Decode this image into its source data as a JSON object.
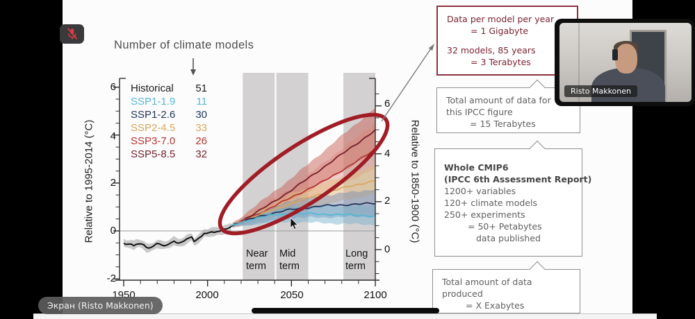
{
  "window": {
    "share_pill_label": "Экран (Risto Makkonen)",
    "webcam_participant_name": "Risto Makkonen"
  },
  "slide": {
    "title": "Number of climate models",
    "annotation_boxes": [
      {
        "style": "red",
        "lines": [
          "Data per model per year",
          "= 1 Gigabyte",
          "",
          "32 models, 85 years",
          "= 3 Terabytes"
        ]
      },
      {
        "style": "gray",
        "lines": [
          "Total amount of data for",
          "this IPCC figure",
          "= 15 Terabytes"
        ]
      },
      {
        "style": "gray",
        "lines": [
          "Whole CMIP6",
          "(IPCC 6th Assessment Report)",
          "1200+ variables",
          "120+ climate models",
          "250+ experiments",
          "= 50+ Petabytes",
          "data published"
        ]
      },
      {
        "style": "gray",
        "lines": [
          "Total amount of data",
          "produced",
          "= X Exabytes"
        ]
      }
    ]
  },
  "colors": {
    "ellipse_annotation": "#a01d26",
    "connector_arrow": "#7a7a7a",
    "title_arrow": "#555555",
    "term_band_fill": "#d3d1d1"
  },
  "chart_data": {
    "type": "line",
    "title": "Number of climate models",
    "y_left": {
      "label": "Relative to 1995-2014 (°C)",
      "ticks": [
        6,
        4,
        2,
        0,
        -2
      ],
      "range": [
        -2.1,
        6.6
      ]
    },
    "y_right": {
      "label": "Relative to 1850-1900 (°C)",
      "ticks": [
        6,
        4,
        2,
        0
      ],
      "baseline_offset": 0.78
    },
    "x_axis": {
      "ticks": [
        1950,
        2000,
        2050,
        2100
      ],
      "minor_step": 10,
      "range": [
        1950,
        2100
      ]
    },
    "bands": [
      {
        "name": "Near term",
        "years": [
          2021,
          2040
        ]
      },
      {
        "name": "Mid term",
        "years": [
          2041,
          2060
        ]
      },
      {
        "name": "Long term",
        "years": [
          2081,
          2100
        ]
      }
    ],
    "legend": [
      {
        "label": "Historical",
        "count": 51,
        "color": "#1a1a1a"
      },
      {
        "label": "SSP1-1.9",
        "count": 11,
        "color": "#56b7d6"
      },
      {
        "label": "SSP1-2.6",
        "count": 30,
        "color": "#20355f"
      },
      {
        "label": "SSP2-4.5",
        "count": 33,
        "color": "#d9a75f"
      },
      {
        "label": "SSP3-7.0",
        "count": 26,
        "color": "#b23732"
      },
      {
        "label": "SSP5-8.5",
        "count": 32,
        "color": "#73202c"
      }
    ],
    "series": [
      {
        "name": "Historical",
        "color": "#111111",
        "width": 2,
        "wiggle": 0.025,
        "band_offset": 0.17,
        "band_fill": "rgba(158,158,158,0.55)",
        "points": [
          [
            1950,
            -0.52
          ],
          [
            1952,
            -0.58
          ],
          [
            1954,
            -0.55
          ],
          [
            1956,
            -0.62
          ],
          [
            1958,
            -0.52
          ],
          [
            1960,
            -0.52
          ],
          [
            1962,
            -0.58
          ],
          [
            1964,
            -0.72
          ],
          [
            1966,
            -0.68
          ],
          [
            1968,
            -0.62
          ],
          [
            1970,
            -0.52
          ],
          [
            1972,
            -0.58
          ],
          [
            1974,
            -0.62
          ],
          [
            1976,
            -0.6
          ],
          [
            1978,
            -0.52
          ],
          [
            1980,
            -0.42
          ],
          [
            1982,
            -0.5
          ],
          [
            1984,
            -0.48
          ],
          [
            1986,
            -0.42
          ],
          [
            1988,
            -0.3
          ],
          [
            1990,
            -0.25
          ],
          [
            1991,
            -0.22
          ],
          [
            1992,
            -0.45
          ],
          [
            1993,
            -0.42
          ],
          [
            1995,
            -0.3
          ],
          [
            1997,
            -0.2
          ],
          [
            1998,
            -0.1
          ],
          [
            2000,
            -0.12
          ],
          [
            2002,
            -0.05
          ],
          [
            2004,
            -0.05
          ],
          [
            2006,
            0.0
          ],
          [
            2008,
            0.0
          ],
          [
            2010,
            0.08
          ],
          [
            2012,
            0.1
          ],
          [
            2014,
            0.2
          ]
        ]
      },
      {
        "name": "SSP5-8.5",
        "color": "#73202c",
        "width": 1.8,
        "wiggle": 0.04,
        "band_fill": "rgba(202,98,87,0.50)",
        "points": [
          [
            2014,
            0.2
          ],
          [
            2030,
            0.8
          ],
          [
            2050,
            1.7
          ],
          [
            2070,
            2.7
          ],
          [
            2090,
            3.7
          ],
          [
            2100,
            4.2
          ]
        ],
        "band": [
          [
            2015,
            0.15,
            0.32
          ],
          [
            2050,
            1.25,
            2.2
          ],
          [
            2100,
            3.3,
            5.15
          ]
        ]
      },
      {
        "name": "SSP3-7.0",
        "color": "#b23732",
        "width": 1.8,
        "wiggle": 0.04,
        "band_fill": "rgba(222,130,116,0.38)",
        "points": [
          [
            2014,
            0.2
          ],
          [
            2030,
            0.7
          ],
          [
            2050,
            1.4
          ],
          [
            2070,
            2.1
          ],
          [
            2090,
            2.95
          ],
          [
            2100,
            3.4
          ]
        ],
        "band": [
          [
            2015,
            0.15,
            0.3
          ],
          [
            2050,
            1.0,
            1.8
          ],
          [
            2100,
            2.6,
            4.5
          ]
        ]
      },
      {
        "name": "SSP2-4.5",
        "color": "#d9a75f",
        "width": 1.8,
        "wiggle": 0.04,
        "band_fill": "rgba(226,185,125,0.50)",
        "points": [
          [
            2014,
            0.2
          ],
          [
            2030,
            0.65
          ],
          [
            2050,
            1.15
          ],
          [
            2070,
            1.6
          ],
          [
            2090,
            1.95
          ],
          [
            2100,
            2.1
          ]
        ],
        "band": [
          [
            2015,
            0.15,
            0.3
          ],
          [
            2050,
            0.8,
            1.55
          ],
          [
            2100,
            1.55,
            2.7
          ]
        ]
      },
      {
        "name": "SSP1-2.6",
        "color": "#20355f",
        "width": 1.8,
        "wiggle": 0.04,
        "band_fill": "rgba(128,143,178,0.50)",
        "points": [
          [
            2014,
            0.2
          ],
          [
            2030,
            0.6
          ],
          [
            2050,
            0.9
          ],
          [
            2070,
            1.05
          ],
          [
            2090,
            1.12
          ],
          [
            2100,
            1.15
          ]
        ],
        "band": [
          [
            2015,
            0.15,
            0.3
          ],
          [
            2050,
            0.55,
            1.3
          ],
          [
            2100,
            0.6,
            1.75
          ]
        ]
      },
      {
        "name": "SSP1-1.9",
        "color": "#56b7d6",
        "width": 1.8,
        "wiggle": 0.04,
        "band_fill": "rgba(116,177,205,0.45)",
        "points": [
          [
            2014,
            0.2
          ],
          [
            2020,
            0.35
          ],
          [
            2030,
            0.55
          ],
          [
            2040,
            0.67
          ],
          [
            2050,
            0.7
          ],
          [
            2060,
            0.72
          ],
          [
            2070,
            0.7
          ],
          [
            2080,
            0.68
          ],
          [
            2090,
            0.65
          ],
          [
            2100,
            0.62
          ]
        ],
        "band": [
          [
            2015,
            0.15,
            0.3
          ],
          [
            2030,
            0.3,
            0.75
          ],
          [
            2050,
            0.38,
            1.05
          ],
          [
            2100,
            0.25,
            1.05
          ]
        ]
      }
    ]
  }
}
